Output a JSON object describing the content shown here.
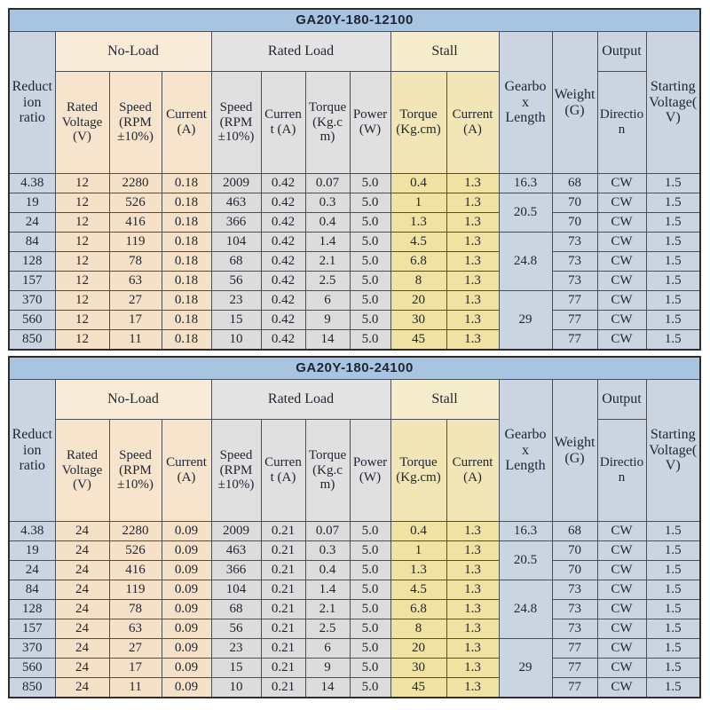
{
  "colors": {
    "title_bar": "#a7c4e0",
    "blue_column": "#cbd5e2",
    "no_load_column": "#f5e1c7",
    "rated_load_column": "#dcdcdc",
    "stall_column": "#f0e2a2",
    "border": "#4d4d52"
  },
  "column_headers": {
    "reduction_ratio": "Reduction ratio",
    "groups": {
      "no_load": "No-Load",
      "rated_load": "Rated Load",
      "stall": "Stall"
    },
    "sub": {
      "rated_voltage": "Rated Voltage (V)",
      "speed": "Speed (RPM ±10%)",
      "current": "Current (A)",
      "torque": "Torque (Kg.cm)",
      "power": "Power (W)"
    },
    "gearbox_length": "Gearbox Length",
    "weight": "Weight(G)",
    "output": "Output",
    "direction": "Direction",
    "starting_voltage": "Starting Voltage(V)"
  },
  "tables": [
    {
      "title": "GA20Y-180-12100",
      "rows": [
        {
          "reduction_ratio": "4.38",
          "rated_voltage": "12",
          "noload_speed": "2280",
          "noload_current": "0.18",
          "rated_speed": "2009",
          "rated_current": "0.42",
          "rated_torque": "0.07",
          "power": "5.0",
          "stall_torque": "0.4",
          "stall_current": "1.3",
          "gearbox_length": "16.3",
          "gearbox_span": 1,
          "weight": "68",
          "direction": "CW",
          "starting_voltage": "1.5"
        },
        {
          "reduction_ratio": "19",
          "rated_voltage": "12",
          "noload_speed": "526",
          "noload_current": "0.18",
          "rated_speed": "463",
          "rated_current": "0.42",
          "rated_torque": "0.3",
          "power": "5.0",
          "stall_torque": "1",
          "stall_current": "1.3",
          "gearbox_length": "20.5",
          "gearbox_span": 2,
          "weight": "70",
          "direction": "CW",
          "starting_voltage": "1.5"
        },
        {
          "reduction_ratio": "24",
          "rated_voltage": "12",
          "noload_speed": "416",
          "noload_current": "0.18",
          "rated_speed": "366",
          "rated_current": "0.42",
          "rated_torque": "0.4",
          "power": "5.0",
          "stall_torque": "1.3",
          "stall_current": "1.3",
          "gearbox_length": null,
          "gearbox_span": 0,
          "weight": "70",
          "direction": "CW",
          "starting_voltage": "1.5"
        },
        {
          "reduction_ratio": "84",
          "rated_voltage": "12",
          "noload_speed": "119",
          "noload_current": "0.18",
          "rated_speed": "104",
          "rated_current": "0.42",
          "rated_torque": "1.4",
          "power": "5.0",
          "stall_torque": "4.5",
          "stall_current": "1.3",
          "gearbox_length": "24.8",
          "gearbox_span": 3,
          "weight": "73",
          "direction": "CW",
          "starting_voltage": "1.5"
        },
        {
          "reduction_ratio": "128",
          "rated_voltage": "12",
          "noload_speed": "78",
          "noload_current": "0.18",
          "rated_speed": "68",
          "rated_current": "0.42",
          "rated_torque": "2.1",
          "power": "5.0",
          "stall_torque": "6.8",
          "stall_current": "1.3",
          "gearbox_length": null,
          "gearbox_span": 0,
          "weight": "73",
          "direction": "CW",
          "starting_voltage": "1.5"
        },
        {
          "reduction_ratio": "157",
          "rated_voltage": "12",
          "noload_speed": "63",
          "noload_current": "0.18",
          "rated_speed": "56",
          "rated_current": "0.42",
          "rated_torque": "2.5",
          "power": "5.0",
          "stall_torque": "8",
          "stall_current": "1.3",
          "gearbox_length": null,
          "gearbox_span": 0,
          "weight": "73",
          "direction": "CW",
          "starting_voltage": "1.5"
        },
        {
          "reduction_ratio": "370",
          "rated_voltage": "12",
          "noload_speed": "27",
          "noload_current": "0.18",
          "rated_speed": "23",
          "rated_current": "0.42",
          "rated_torque": "6",
          "power": "5.0",
          "stall_torque": "20",
          "stall_current": "1.3",
          "gearbox_length": "29",
          "gearbox_span": 3,
          "weight": "77",
          "direction": "CW",
          "starting_voltage": "1.5"
        },
        {
          "reduction_ratio": "560",
          "rated_voltage": "12",
          "noload_speed": "17",
          "noload_current": "0.18",
          "rated_speed": "15",
          "rated_current": "0.42",
          "rated_torque": "9",
          "power": "5.0",
          "stall_torque": "30",
          "stall_current": "1.3",
          "gearbox_length": null,
          "gearbox_span": 0,
          "weight": "77",
          "direction": "CW",
          "starting_voltage": "1.5"
        },
        {
          "reduction_ratio": "850",
          "rated_voltage": "12",
          "noload_speed": "11",
          "noload_current": "0.18",
          "rated_speed": "10",
          "rated_current": "0.42",
          "rated_torque": "14",
          "power": "5.0",
          "stall_torque": "45",
          "stall_current": "1.3",
          "gearbox_length": null,
          "gearbox_span": 0,
          "weight": "77",
          "direction": "CW",
          "starting_voltage": "1.5"
        }
      ]
    },
    {
      "title": "GA20Y-180-24100",
      "rows": [
        {
          "reduction_ratio": "4.38",
          "rated_voltage": "24",
          "noload_speed": "2280",
          "noload_current": "0.09",
          "rated_speed": "2009",
          "rated_current": "0.21",
          "rated_torque": "0.07",
          "power": "5.0",
          "stall_torque": "0.4",
          "stall_current": "1.3",
          "gearbox_length": "16.3",
          "gearbox_span": 1,
          "weight": "68",
          "direction": "CW",
          "starting_voltage": "1.5"
        },
        {
          "reduction_ratio": "19",
          "rated_voltage": "24",
          "noload_speed": "526",
          "noload_current": "0.09",
          "rated_speed": "463",
          "rated_current": "0.21",
          "rated_torque": "0.3",
          "power": "5.0",
          "stall_torque": "1",
          "stall_current": "1.3",
          "gearbox_length": "20.5",
          "gearbox_span": 2,
          "weight": "70",
          "direction": "CW",
          "starting_voltage": "1.5"
        },
        {
          "reduction_ratio": "24",
          "rated_voltage": "24",
          "noload_speed": "416",
          "noload_current": "0.09",
          "rated_speed": "366",
          "rated_current": "0.21",
          "rated_torque": "0.4",
          "power": "5.0",
          "stall_torque": "1.3",
          "stall_current": "1.3",
          "gearbox_length": null,
          "gearbox_span": 0,
          "weight": "70",
          "direction": "CW",
          "starting_voltage": "1.5"
        },
        {
          "reduction_ratio": "84",
          "rated_voltage": "24",
          "noload_speed": "119",
          "noload_current": "0.09",
          "rated_speed": "104",
          "rated_current": "0.21",
          "rated_torque": "1.4",
          "power": "5.0",
          "stall_torque": "4.5",
          "stall_current": "1.3",
          "gearbox_length": "24.8",
          "gearbox_span": 3,
          "weight": "73",
          "direction": "CW",
          "starting_voltage": "1.5"
        },
        {
          "reduction_ratio": "128",
          "rated_voltage": "24",
          "noload_speed": "78",
          "noload_current": "0.09",
          "rated_speed": "68",
          "rated_current": "0.21",
          "rated_torque": "2.1",
          "power": "5.0",
          "stall_torque": "6.8",
          "stall_current": "1.3",
          "gearbox_length": null,
          "gearbox_span": 0,
          "weight": "73",
          "direction": "CW",
          "starting_voltage": "1.5"
        },
        {
          "reduction_ratio": "157",
          "rated_voltage": "24",
          "noload_speed": "63",
          "noload_current": "0.09",
          "rated_speed": "56",
          "rated_current": "0.21",
          "rated_torque": "2.5",
          "power": "5.0",
          "stall_torque": "8",
          "stall_current": "1.3",
          "gearbox_length": null,
          "gearbox_span": 0,
          "weight": "73",
          "direction": "CW",
          "starting_voltage": "1.5"
        },
        {
          "reduction_ratio": "370",
          "rated_voltage": "24",
          "noload_speed": "27",
          "noload_current": "0.09",
          "rated_speed": "23",
          "rated_current": "0.21",
          "rated_torque": "6",
          "power": "5.0",
          "stall_torque": "20",
          "stall_current": "1.3",
          "gearbox_length": "29",
          "gearbox_span": 3,
          "weight": "77",
          "direction": "CW",
          "starting_voltage": "1.5"
        },
        {
          "reduction_ratio": "560",
          "rated_voltage": "24",
          "noload_speed": "17",
          "noload_current": "0.09",
          "rated_speed": "15",
          "rated_current": "0.21",
          "rated_torque": "9",
          "power": "5.0",
          "stall_torque": "30",
          "stall_current": "1.3",
          "gearbox_length": null,
          "gearbox_span": 0,
          "weight": "77",
          "direction": "CW",
          "starting_voltage": "1.5"
        },
        {
          "reduction_ratio": "850",
          "rated_voltage": "24",
          "noload_speed": "11",
          "noload_current": "0.09",
          "rated_speed": "10",
          "rated_current": "0.21",
          "rated_torque": "14",
          "power": "5.0",
          "stall_torque": "45",
          "stall_current": "1.3",
          "gearbox_length": null,
          "gearbox_span": 0,
          "weight": "77",
          "direction": "CW",
          "starting_voltage": "1.5"
        }
      ]
    }
  ]
}
